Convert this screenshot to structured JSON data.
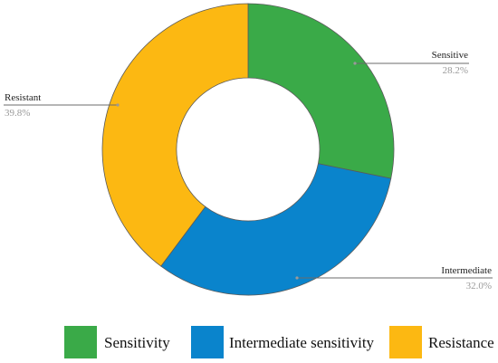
{
  "chart_data": {
    "type": "pie",
    "donut": true,
    "title": "",
    "slices": [
      {
        "label": "Sensitive",
        "value": 28.2,
        "value_label": "28.2%",
        "color": "#3aaa48"
      },
      {
        "label": "Intermediate",
        "value": 32.0,
        "value_label": "32.0%",
        "color": "#0a84cc"
      },
      {
        "label": "Resistant",
        "value": 39.8,
        "value_label": "39.8%",
        "color": "#fcb812"
      }
    ],
    "legend": {
      "placement": "bottom",
      "entries": [
        {
          "label": "Sensitivity",
          "color": "#3aaa48"
        },
        {
          "label": "Intermediate sensitivity",
          "color": "#0a84cc"
        },
        {
          "label": "Resistance",
          "color": "#fcb812"
        }
      ]
    }
  }
}
